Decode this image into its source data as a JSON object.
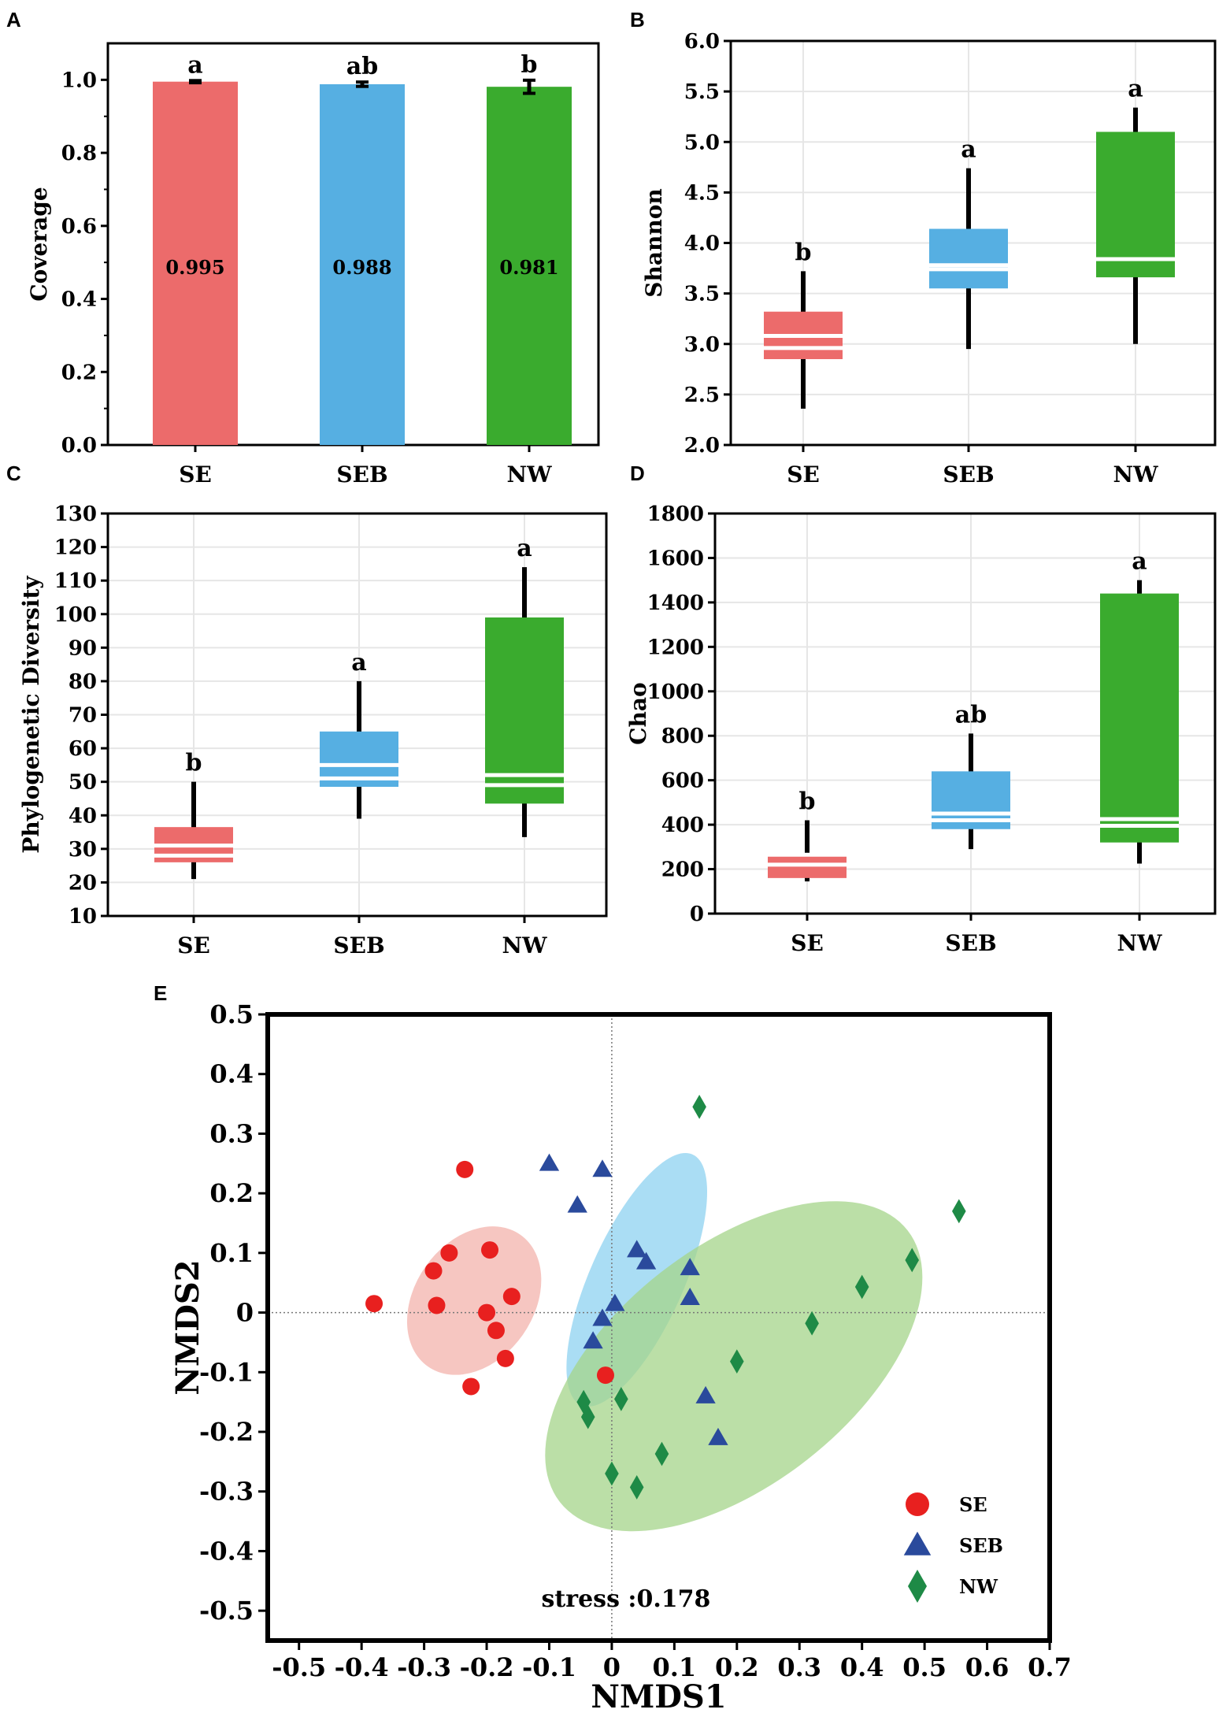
{
  "chart_data": [
    {
      "panel": "A",
      "type": "bar",
      "ylabel": "Coverage",
      "categories": [
        "SE",
        "SEB",
        "NW"
      ],
      "values": [
        0.995,
        0.988,
        0.981
      ],
      "value_labels": [
        "0.995",
        "0.988",
        "0.981"
      ],
      "errors": [
        0.003,
        0.006,
        0.018
      ],
      "significance": [
        "a",
        "ab",
        "b"
      ],
      "colors": [
        "#ec6b6b",
        "#56afe2",
        "#3aab2e"
      ],
      "ylim": [
        0,
        1.1
      ],
      "yticks": [
        0.0,
        0.2,
        0.4,
        0.6,
        0.8,
        1.0
      ],
      "ytick_labels": [
        "0.0",
        "0.2",
        "0.4",
        "0.6",
        "0.8",
        "1.0"
      ]
    },
    {
      "panel": "B",
      "type": "box",
      "ylabel": "Shannon",
      "categories": [
        "SE",
        "SEB",
        "NW"
      ],
      "boxes": [
        {
          "whisker_low": 2.36,
          "q1": 2.85,
          "median": 2.96,
          "mean": 3.08,
          "q3": 3.32,
          "whisker_high": 3.72
        },
        {
          "whisker_low": 2.95,
          "q1": 3.55,
          "median": 3.74,
          "mean": 3.78,
          "q3": 4.14,
          "whisker_high": 4.74
        },
        {
          "whisker_low": 3.0,
          "q1": 3.66,
          "median": 3.84,
          "mean": 3.84,
          "q3": 5.1,
          "whisker_high": 5.34
        }
      ],
      "significance": [
        "b",
        "a",
        "a"
      ],
      "colors": [
        "#ec6b6b",
        "#56afe2",
        "#3aab2e"
      ],
      "ylim": [
        2.0,
        6.0
      ],
      "yticks": [
        2.0,
        2.5,
        3.0,
        3.5,
        4.0,
        4.5,
        5.0,
        5.5,
        6.0
      ],
      "ytick_labels": [
        "2.0",
        "2.5",
        "3.0",
        "3.5",
        "4.0",
        "4.5",
        "5.0",
        "5.5",
        "6.0"
      ]
    },
    {
      "panel": "C",
      "type": "box",
      "ylabel": "Phylogenetic Diversity",
      "categories": [
        "SE",
        "SEB",
        "NW"
      ],
      "boxes": [
        {
          "whisker_low": 21,
          "q1": 26,
          "median": 28,
          "mean": 31,
          "q3": 36.5,
          "whisker_high": 50
        },
        {
          "whisker_low": 39,
          "q1": 48.5,
          "median": 51,
          "mean": 55,
          "q3": 65,
          "whisker_high": 80
        },
        {
          "whisker_low": 33.5,
          "q1": 43.5,
          "median": 49,
          "mean": 52,
          "q3": 99,
          "whisker_high": 114
        }
      ],
      "significance": [
        "b",
        "a",
        "a"
      ],
      "colors": [
        "#ec6b6b",
        "#56afe2",
        "#3aab2e"
      ],
      "ylim": [
        10,
        130
      ],
      "yticks": [
        10,
        20,
        30,
        40,
        50,
        60,
        70,
        80,
        90,
        100,
        110,
        120,
        130
      ],
      "ytick_labels": [
        "10",
        "20",
        "30",
        "40",
        "50",
        "60",
        "70",
        "80",
        "90",
        "100",
        "110",
        "120",
        "130"
      ]
    },
    {
      "panel": "D",
      "type": "box",
      "ylabel": "Chao",
      "categories": [
        "SE",
        "SEB",
        "NW"
      ],
      "boxes": [
        {
          "whisker_low": 145,
          "q1": 160,
          "median": 220,
          "mean": 265,
          "q3": 270,
          "whisker_high": 420
        },
        {
          "whisker_low": 290,
          "q1": 380,
          "median": 420,
          "mean": 450,
          "q3": 640,
          "whisker_high": 810
        },
        {
          "whisker_low": 225,
          "q1": 320,
          "median": 395,
          "mean": 425,
          "q3": 1440,
          "whisker_high": 1500
        }
      ],
      "significance": [
        "b",
        "ab",
        "a"
      ],
      "colors": [
        "#ec6b6b",
        "#56afe2",
        "#3aab2e"
      ],
      "ylim": [
        0,
        1800
      ],
      "yticks": [
        0,
        200,
        400,
        600,
        800,
        1000,
        1200,
        1400,
        1600,
        1800
      ],
      "ytick_labels": [
        "0",
        "200",
        "400",
        "600",
        "800",
        "1000",
        "1200",
        "1400",
        "1600",
        "1800"
      ]
    },
    {
      "panel": "E",
      "type": "scatter",
      "xlabel": "NMDS1",
      "ylabel": "NMDS2",
      "xlim": [
        -0.55,
        0.7
      ],
      "ylim": [
        -0.55,
        0.5
      ],
      "xticks": [
        -0.5,
        -0.4,
        -0.3,
        -0.2,
        -0.1,
        0,
        0.1,
        0.2,
        0.3,
        0.4,
        0.5,
        0.6,
        0.7
      ],
      "xtick_labels": [
        "-0.5",
        "-0.4",
        "-0.3",
        "-0.2",
        "-0.1",
        "0",
        "0.1",
        "0.2",
        "0.3",
        "0.4",
        "0.5",
        "0.6",
        "0.7"
      ],
      "yticks": [
        -0.5,
        -0.4,
        -0.3,
        -0.2,
        -0.1,
        0,
        0.1,
        0.2,
        0.3,
        0.4,
        0.5
      ],
      "ytick_labels": [
        "-0.5",
        "-0.4",
        "-0.3",
        "-0.2",
        "-0.1",
        "0",
        "0.1",
        "0.2",
        "0.3",
        "0.4",
        "0.5"
      ],
      "stress_label": "stress :0.178",
      "series": [
        {
          "name": "SE",
          "marker": "circle",
          "color": "#e8201f",
          "ellipse_color": "#f3b3ac",
          "ellipse": {
            "cx": -0.22,
            "cy": 0.02,
            "rx": 0.095,
            "ry": 0.135,
            "angle_deg": 35
          },
          "x": [
            -0.38,
            -0.235,
            -0.285,
            -0.26,
            -0.195,
            -0.28,
            -0.2,
            -0.16,
            -0.185,
            -0.17,
            -0.225,
            -0.01
          ],
          "y": [
            0.015,
            0.24,
            0.07,
            0.1,
            0.105,
            0.012,
            0.0,
            0.027,
            -0.03,
            -0.077,
            -0.124,
            -0.105
          ]
        },
        {
          "name": "SEB",
          "marker": "triangle",
          "color": "#2a4a9c",
          "ellipse_color": "#8ed1f0",
          "ellipse": {
            "cx": 0.04,
            "cy": 0.055,
            "rx": 0.075,
            "ry": 0.23,
            "angle_deg": 24
          },
          "x": [
            -0.1,
            -0.015,
            -0.055,
            0.04,
            0.055,
            0.125,
            0.125,
            0.005,
            -0.015,
            -0.03,
            0.15,
            0.17
          ],
          "y": [
            0.25,
            0.24,
            0.18,
            0.105,
            0.085,
            0.075,
            0.025,
            0.015,
            -0.01,
            -0.048,
            -0.14,
            -0.21
          ]
        },
        {
          "name": "NW",
          "marker": "diamond",
          "color": "#1e8a46",
          "ellipse_color": "#a4d48a",
          "ellipse": {
            "cx": 0.195,
            "cy": -0.09,
            "rx": 0.19,
            "ry": 0.37,
            "angle_deg": 52
          },
          "x": [
            0.14,
            0.555,
            0.48,
            0.4,
            0.32,
            0.2,
            0.015,
            -0.045,
            -0.038,
            0.08,
            0.0,
            0.04
          ],
          "y": [
            0.345,
            0.17,
            0.088,
            0.043,
            -0.018,
            -0.082,
            -0.145,
            -0.15,
            -0.175,
            -0.237,
            -0.27,
            -0.293
          ]
        }
      ]
    }
  ]
}
